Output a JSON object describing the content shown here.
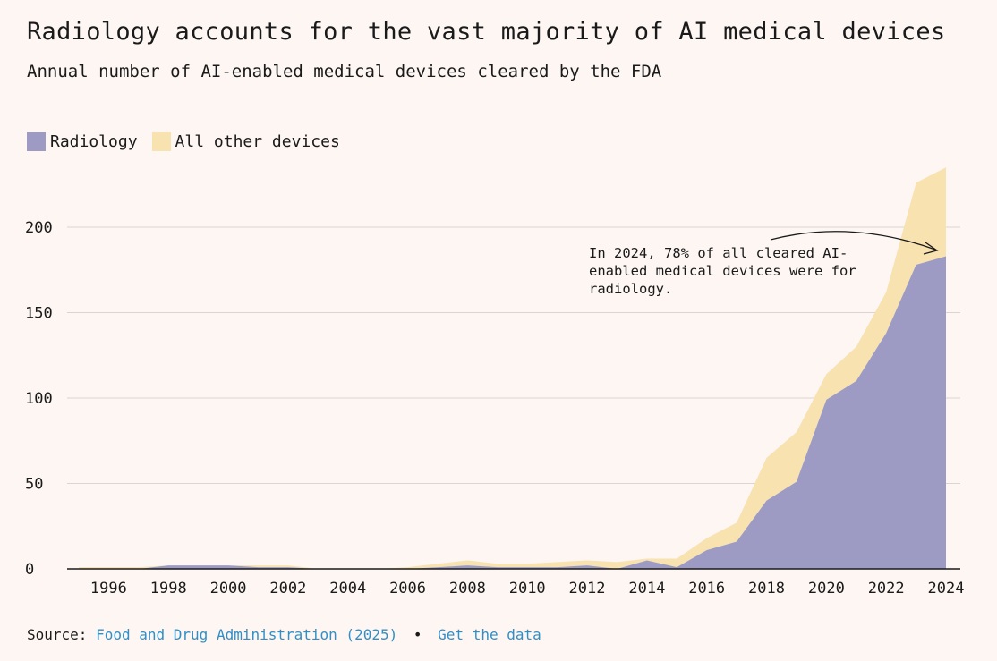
{
  "header": {
    "title": "Radiology accounts for the vast majority of AI medical devices",
    "subtitle": "Annual number of AI-enabled medical devices cleared by the FDA"
  },
  "legend": {
    "radiology_label": "Radiology",
    "other_label": "All other devices"
  },
  "annotation": {
    "lines": [
      "In 2024, 78% of all cleared AI-",
      "enabled medical devices were for",
      "radiology."
    ]
  },
  "source": {
    "prefix": "Source:",
    "link1": "Food and Drug Administration (2025)",
    "separator": "•",
    "link2": "Get the data"
  },
  "colors": {
    "radiology": "#9d9bc4",
    "other": "#f7e2b0",
    "background": "#fdf6f3",
    "link": "#2f8fc7"
  },
  "chart_data": {
    "type": "area",
    "stacked": true,
    "x": [
      1995,
      1996,
      1997,
      1998,
      1999,
      2000,
      2001,
      2002,
      2003,
      2004,
      2005,
      2006,
      2007,
      2008,
      2009,
      2010,
      2011,
      2012,
      2013,
      2014,
      2015,
      2016,
      2017,
      2018,
      2019,
      2020,
      2021,
      2022,
      2023,
      2024
    ],
    "series": [
      {
        "name": "Radiology",
        "values": [
          0,
          0,
          0,
          2,
          2,
          2,
          1,
          1,
          0,
          0,
          0,
          0,
          1,
          2,
          1,
          1,
          1,
          2,
          0,
          5,
          1,
          11,
          16,
          40,
          51,
          99,
          110,
          138,
          178,
          183
        ]
      },
      {
        "name": "All other devices",
        "values": [
          1,
          1,
          1,
          0,
          0,
          0,
          1,
          1,
          0,
          0,
          0,
          1,
          2,
          3,
          2,
          2,
          3,
          3,
          4,
          1,
          5,
          7,
          11,
          25,
          29,
          15,
          20,
          24,
          48,
          52
        ]
      }
    ],
    "ylim": [
      0,
      235
    ],
    "y_ticks": [
      0,
      50,
      100,
      150,
      200
    ],
    "x_ticks": [
      1996,
      1998,
      2000,
      2002,
      2004,
      2006,
      2008,
      2010,
      2012,
      2014,
      2016,
      2018,
      2020,
      2022,
      2024
    ],
    "grid": true,
    "legend_position": "top-left"
  }
}
